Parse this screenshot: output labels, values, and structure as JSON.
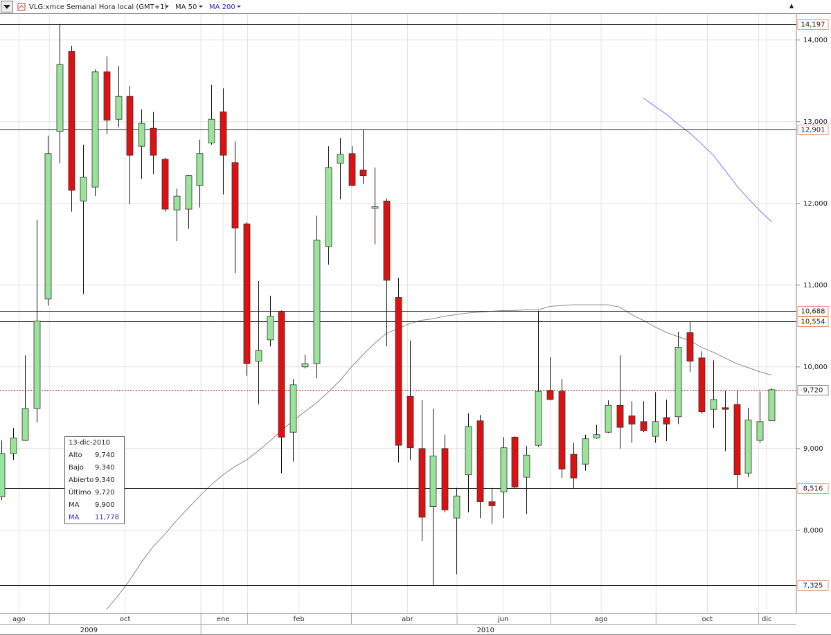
{
  "chart_data": {
    "type": "candlestick",
    "title": "VLG:xmce Semanal Hora local (GMT+1)",
    "xlim": [
      -0.12,
      68.13
    ],
    "ylim": [
      6990,
      14320
    ],
    "yticks": [
      {
        "value": 8000,
        "label": "8,000"
      },
      {
        "value": 9000,
        "label": "9,000"
      },
      {
        "value": 10000,
        "label": "10,000"
      },
      {
        "value": 11000,
        "label": "11,000"
      },
      {
        "value": 12000,
        "label": "12,000"
      },
      {
        "value": 13000,
        "label": "13,000"
      },
      {
        "value": 14000,
        "label": "14,000"
      }
    ],
    "xticks": [
      {
        "value": 1.5,
        "label": "ago"
      },
      {
        "value": 10.6,
        "label": "oct"
      },
      {
        "value": 19,
        "label": "ene"
      },
      {
        "value": 25.5,
        "label": "feb"
      },
      {
        "value": 34.8,
        "label": "abr"
      },
      {
        "value": 43,
        "label": "jun"
      },
      {
        "value": 51.4,
        "label": "ago"
      },
      {
        "value": 60.5,
        "label": "oct"
      },
      {
        "value": 65.6,
        "label": "dic"
      }
    ],
    "month_bounds": [
      4.1,
      17.1,
      21.1,
      30.0,
      39.05,
      47.06,
      56.1,
      64.9
    ],
    "year_ticks": [
      {
        "value": 7.5,
        "label": "2009"
      },
      {
        "value": 41.5,
        "label": "2010"
      }
    ],
    "year_bounds": [
      17.1
    ],
    "grid": true,
    "series": [
      {
        "name": "VLG:xmce",
        "up_color": "#9be39b",
        "down_color": "#dd1111",
        "open": [
          8410,
          8940,
          9100,
          9490,
          10830,
          12880,
          13860,
          12030,
          12200,
          13610,
          13030,
          13310,
          12700,
          12920,
          12540,
          11920,
          11930,
          12220,
          12740,
          13120,
          12500,
          11750,
          10070,
          10330,
          10670,
          9200,
          10000,
          10040,
          11470,
          12490,
          12610,
          12410,
          11940,
          12030,
          10850,
          9640,
          9000,
          8290,
          9000,
          8150,
          8680,
          9340,
          8350,
          8470,
          9140,
          8650,
          9040,
          9710,
          9700,
          8930,
          8810,
          9130,
          9200,
          9530,
          9400,
          9330,
          9150,
          9380,
          9390,
          10420,
          10110,
          9480,
          9500,
          9540,
          8700,
          9100,
          9340
        ],
        "high": [
          9100,
          9250,
          10140,
          11800,
          12830,
          14197,
          13930,
          12720,
          13640,
          13800,
          13680,
          13440,
          13150,
          13120,
          12560,
          12180,
          12350,
          12780,
          13450,
          13410,
          12760,
          11770,
          11050,
          10870,
          10690,
          9850,
          10150,
          11850,
          12700,
          12800,
          12700,
          12901,
          12440,
          12060,
          11090,
          10320,
          9590,
          9490,
          9170,
          8520,
          9430,
          9410,
          8520,
          9140,
          9150,
          9030,
          10688,
          10120,
          9850,
          9070,
          9170,
          9290,
          9590,
          10140,
          9580,
          9580,
          9690,
          9600,
          10430,
          10554,
          10190,
          10080,
          9710,
          9710,
          9500,
          9700,
          9740
        ],
        "low": [
          8370,
          8860,
          9090,
          9320,
          10750,
          12490,
          11900,
          10890,
          12090,
          12850,
          12930,
          11990,
          12300,
          12360,
          11900,
          11540,
          11690,
          11950,
          12720,
          12110,
          11150,
          9890,
          9540,
          10250,
          8700,
          8840,
          9980,
          9860,
          11250,
          12050,
          12210,
          12240,
          11500,
          10250,
          8830,
          8860,
          7870,
          7325,
          8220,
          7460,
          8220,
          8150,
          8080,
          8150,
          8510,
          8200,
          9020,
          9590,
          8640,
          8516,
          8730,
          9120,
          9190,
          9000,
          9070,
          9200,
          9070,
          9090,
          9300,
          9940,
          9430,
          9250,
          8970,
          8516,
          8650,
          9070,
          9340
        ],
        "close": [
          8940,
          9130,
          9490,
          10560,
          12610,
          13700,
          12160,
          12320,
          13610,
          13020,
          13310,
          12590,
          12980,
          12590,
          11930,
          12090,
          12340,
          12610,
          13030,
          12590,
          11700,
          10040,
          10200,
          10620,
          9140,
          9780,
          10040,
          11550,
          12440,
          12600,
          12220,
          12340,
          11960,
          11060,
          9040,
          9010,
          8160,
          8910,
          8250,
          8420,
          9270,
          8350,
          8300,
          9010,
          8530,
          8920,
          9700,
          9600,
          8750,
          8640,
          9120,
          9170,
          9530,
          9260,
          9300,
          9220,
          9330,
          9300,
          10240,
          10070,
          9450,
          9600,
          9480,
          8680,
          9350,
          9330,
          9720
        ]
      }
    ],
    "lines": [
      {
        "name": "MA 50",
        "color": "#8a8a8a",
        "values": [
          null,
          null,
          null,
          null,
          null,
          null,
          null,
          null,
          null,
          7030,
          7200,
          7390,
          7610,
          7800,
          7950,
          8120,
          8270,
          8420,
          8560,
          8680,
          8780,
          8860,
          8970,
          9090,
          9220,
          9340,
          9450,
          9560,
          9690,
          9830,
          10000,
          10150,
          10290,
          10410,
          10470,
          10530,
          10570,
          10590,
          10620,
          10640,
          10660,
          10670,
          10680,
          10690,
          10690,
          10700,
          10700,
          10740,
          10750,
          10760,
          10760,
          10760,
          10760,
          10730,
          10640,
          10570,
          10490,
          10420,
          10370,
          10320,
          10240,
          10180,
          10110,
          10040,
          9990,
          9940,
          9900
        ]
      },
      {
        "name": "MA 200",
        "color": "#7a7aff",
        "values": [
          null,
          null,
          null,
          null,
          null,
          null,
          null,
          null,
          null,
          null,
          null,
          null,
          null,
          null,
          null,
          null,
          null,
          null,
          null,
          null,
          null,
          null,
          null,
          null,
          null,
          null,
          null,
          null,
          null,
          null,
          null,
          null,
          null,
          null,
          null,
          null,
          null,
          null,
          null,
          null,
          null,
          null,
          null,
          null,
          null,
          null,
          null,
          null,
          null,
          null,
          null,
          null,
          null,
          null,
          null,
          13290,
          13190,
          13090,
          12970,
          12860,
          12730,
          12590,
          12410,
          12220,
          12060,
          11910,
          11778
        ]
      }
    ],
    "levels": [
      {
        "value": 14197,
        "label": "14,197"
      },
      {
        "value": 12901,
        "label": "12,901"
      },
      {
        "value": 10688,
        "label": "10,688"
      },
      {
        "value": 10554,
        "label": "10,554"
      },
      {
        "value": 8516,
        "label": "8,516"
      },
      {
        "value": 7325,
        "label": "7,325"
      }
    ],
    "current": {
      "value": 9720,
      "label": "9,720"
    },
    "info_box": {
      "date": "13-dic-2010",
      "rows": [
        {
          "label": "Alto",
          "value": "9,740"
        },
        {
          "label": "Bajo",
          "value": "9,340"
        },
        {
          "label": "Abierto",
          "value": "9,340"
        },
        {
          "label": "Último",
          "value": "9,720"
        },
        {
          "label": "MA",
          "value": "9,900"
        },
        {
          "label": "MA",
          "value": "11,778"
        }
      ]
    }
  }
}
